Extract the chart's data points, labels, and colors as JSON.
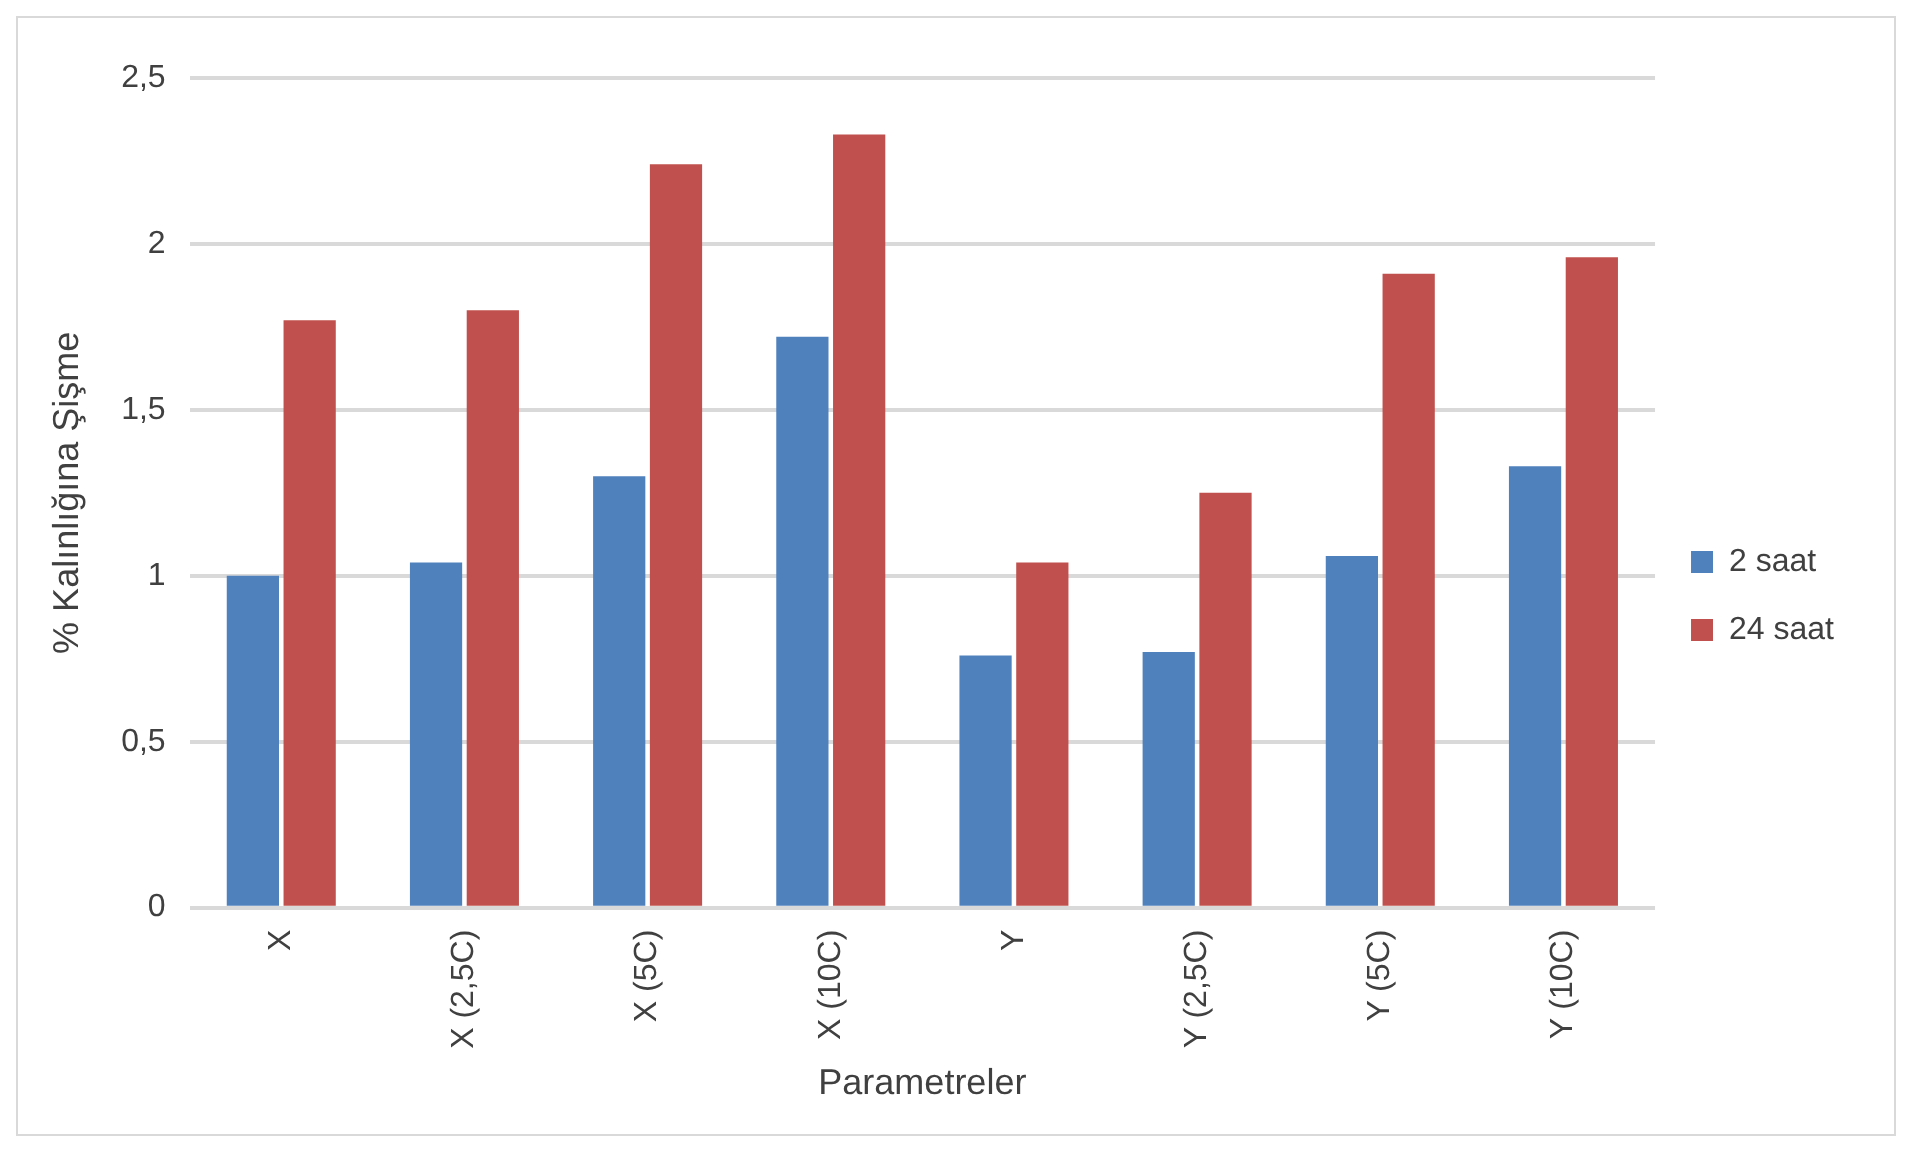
{
  "chart_data": {
    "type": "bar",
    "xlabel": "Parametreler",
    "ylabel": "% Kalınlığına Şişme",
    "categories": [
      "X",
      "X (2,5C)",
      "X (5C)",
      "X (10C)",
      "Y",
      "Y (2,5C)",
      "Y (5C)",
      "Y (10C)"
    ],
    "series": [
      {
        "name": "2 saat",
        "color": "#4f81bd",
        "values": [
          1.0,
          1.04,
          1.3,
          1.72,
          0.76,
          0.77,
          1.06,
          1.33
        ]
      },
      {
        "name": "24 saat",
        "color": "#c0504d",
        "values": [
          1.77,
          1.8,
          2.24,
          2.33,
          1.04,
          1.25,
          1.91,
          1.96
        ]
      }
    ],
    "ylim": [
      0,
      2.5
    ],
    "yticks": [
      0,
      {
        "value": 0.5,
        "label": "0,5"
      },
      1,
      {
        "value": 1.5,
        "label": "1,5"
      },
      2,
      {
        "value": 2.5,
        "label": "2,5"
      }
    ],
    "grid": "y",
    "legend": "right"
  }
}
